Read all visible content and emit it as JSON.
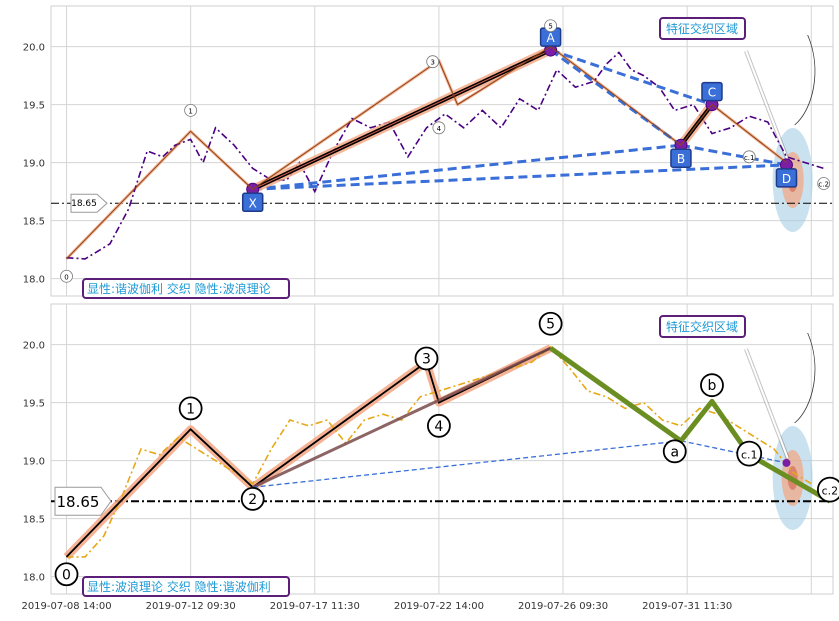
{
  "chart_data": [
    {
      "type": "line",
      "panel": "top",
      "ylim": [
        17.85,
        20.35
      ],
      "y_ticks": [
        18.0,
        18.5,
        19.0,
        19.5,
        20.0
      ],
      "y_tick_labels": [
        "18.0",
        "18.5",
        "19.0",
        "19.5",
        "20.0"
      ],
      "grid": true,
      "price_series": [
        {
          "x": 0.0,
          "y": 18.18
        },
        {
          "x": 0.3,
          "y": 18.17
        },
        {
          "x": 0.7,
          "y": 18.3
        },
        {
          "x": 1.0,
          "y": 18.6
        },
        {
          "x": 1.3,
          "y": 19.1
        },
        {
          "x": 1.55,
          "y": 19.05
        },
        {
          "x": 1.75,
          "y": 19.15
        },
        {
          "x": 2.0,
          "y": 19.2
        },
        {
          "x": 2.2,
          "y": 19.0
        },
        {
          "x": 2.4,
          "y": 19.3
        },
        {
          "x": 2.7,
          "y": 19.15
        },
        {
          "x": 3.0,
          "y": 18.95
        },
        {
          "x": 3.3,
          "y": 18.85
        },
        {
          "x": 3.55,
          "y": 18.85
        },
        {
          "x": 3.75,
          "y": 19.0
        },
        {
          "x": 4.0,
          "y": 18.75
        },
        {
          "x": 4.3,
          "y": 19.1
        },
        {
          "x": 4.6,
          "y": 19.38
        },
        {
          "x": 4.9,
          "y": 19.3
        },
        {
          "x": 5.2,
          "y": 19.35
        },
        {
          "x": 5.5,
          "y": 19.05
        },
        {
          "x": 5.8,
          "y": 19.3
        },
        {
          "x": 6.1,
          "y": 19.42
        },
        {
          "x": 6.4,
          "y": 19.3
        },
        {
          "x": 6.7,
          "y": 19.45
        },
        {
          "x": 7.0,
          "y": 19.3
        },
        {
          "x": 7.3,
          "y": 19.55
        },
        {
          "x": 7.6,
          "y": 19.45
        },
        {
          "x": 7.9,
          "y": 19.8
        },
        {
          "x": 8.2,
          "y": 19.65
        },
        {
          "x": 8.5,
          "y": 19.7
        },
        {
          "x": 8.7,
          "y": 19.85
        },
        {
          "x": 8.9,
          "y": 19.95
        },
        {
          "x": 9.1,
          "y": 19.8
        },
        {
          "x": 9.3,
          "y": 19.75
        },
        {
          "x": 9.55,
          "y": 19.65
        },
        {
          "x": 9.8,
          "y": 19.45
        },
        {
          "x": 10.1,
          "y": 19.5
        },
        {
          "x": 10.4,
          "y": 19.25
        },
        {
          "x": 10.7,
          "y": 19.3
        },
        {
          "x": 11.0,
          "y": 19.4
        },
        {
          "x": 11.3,
          "y": 19.35
        },
        {
          "x": 11.6,
          "y": 19.05
        },
        {
          "x": 11.9,
          "y": 19.0
        },
        {
          "x": 12.2,
          "y": 18.95
        }
      ],
      "wave_lines": [
        {
          "x": 0.0,
          "y": 18.17
        },
        {
          "x": 2.0,
          "y": 19.27
        },
        {
          "x": 3.0,
          "y": 18.77
        },
        {
          "x": 6.0,
          "y": 19.88
        },
        {
          "x": 6.3,
          "y": 19.5
        },
        {
          "x": 7.8,
          "y": 20.0
        },
        {
          "x": 9.9,
          "y": 19.15
        },
        {
          "x": 10.4,
          "y": 19.5
        },
        {
          "x": 11.6,
          "y": 19.0
        }
      ],
      "harmonic_points": [
        {
          "label": "X",
          "x": 3.0,
          "y": 18.77
        },
        {
          "label": "A",
          "x": 7.8,
          "y": 19.97
        },
        {
          "label": "B",
          "x": 9.9,
          "y": 19.15
        },
        {
          "label": "C",
          "x": 10.4,
          "y": 19.5
        },
        {
          "label": "D",
          "x": 11.6,
          "y": 18.98
        }
      ],
      "wave_labels": [
        {
          "label": "0",
          "x": 0.0,
          "y": 18.02
        },
        {
          "label": "1",
          "x": 2.0,
          "y": 19.45
        },
        {
          "label": "3",
          "x": 5.9,
          "y": 19.87
        },
        {
          "label": "4",
          "x": 6.0,
          "y": 19.3
        },
        {
          "label": "5",
          "x": 7.8,
          "y": 20.18
        },
        {
          "label": "c.1",
          "x": 11.0,
          "y": 19.05
        },
        {
          "label": "c.2",
          "x": 12.2,
          "y": 18.82
        }
      ],
      "hline": {
        "value": 18.65,
        "label": "18.65"
      },
      "zone_label": "特征交织区域",
      "caption": "显性:谐波伽利 交织 隐性:波浪理论"
    },
    {
      "type": "line",
      "panel": "bottom",
      "ylim": [
        17.85,
        20.35
      ],
      "y_ticks": [
        18.0,
        18.5,
        19.0,
        19.5,
        20.0
      ],
      "y_tick_labels": [
        "18.0",
        "18.5",
        "19.0",
        "19.5",
        "20.0"
      ],
      "x_ticks": [
        0,
        2,
        4,
        6,
        8,
        10
      ],
      "x_tick_labels": [
        "2019-07-08 14:00",
        "2019-07-12 09:30",
        "2019-07-17 11:30",
        "2019-07-22 14:00",
        "2019-07-26 09:30",
        "2019-07-31 11:30"
      ],
      "grid": true,
      "price_series": [
        {
          "x": 0.0,
          "y": 18.17
        },
        {
          "x": 0.3,
          "y": 18.17
        },
        {
          "x": 0.6,
          "y": 18.35
        },
        {
          "x": 0.9,
          "y": 18.7
        },
        {
          "x": 1.2,
          "y": 19.1
        },
        {
          "x": 1.5,
          "y": 19.05
        },
        {
          "x": 1.8,
          "y": 19.2
        },
        {
          "x": 2.1,
          "y": 19.1
        },
        {
          "x": 2.4,
          "y": 19.0
        },
        {
          "x": 2.7,
          "y": 18.9
        },
        {
          "x": 3.0,
          "y": 18.8
        },
        {
          "x": 3.3,
          "y": 19.1
        },
        {
          "x": 3.6,
          "y": 19.35
        },
        {
          "x": 3.9,
          "y": 19.3
        },
        {
          "x": 4.2,
          "y": 19.35
        },
        {
          "x": 4.5,
          "y": 19.15
        },
        {
          "x": 4.8,
          "y": 19.35
        },
        {
          "x": 5.1,
          "y": 19.4
        },
        {
          "x": 5.4,
          "y": 19.35
        },
        {
          "x": 5.7,
          "y": 19.55
        },
        {
          "x": 6.0,
          "y": 19.6
        },
        {
          "x": 6.3,
          "y": 19.65
        },
        {
          "x": 6.6,
          "y": 19.7
        },
        {
          "x": 6.9,
          "y": 19.75
        },
        {
          "x": 7.2,
          "y": 19.8
        },
        {
          "x": 7.5,
          "y": 19.85
        },
        {
          "x": 7.8,
          "y": 19.98
        },
        {
          "x": 8.1,
          "y": 19.8
        },
        {
          "x": 8.4,
          "y": 19.6
        },
        {
          "x": 8.7,
          "y": 19.55
        },
        {
          "x": 9.0,
          "y": 19.45
        },
        {
          "x": 9.3,
          "y": 19.5
        },
        {
          "x": 9.6,
          "y": 19.35
        },
        {
          "x": 9.9,
          "y": 19.3
        },
        {
          "x": 10.2,
          "y": 19.45
        },
        {
          "x": 10.5,
          "y": 19.4
        },
        {
          "x": 10.8,
          "y": 19.3
        },
        {
          "x": 11.1,
          "y": 19.2
        },
        {
          "x": 11.4,
          "y": 19.1
        },
        {
          "x": 11.7,
          "y": 18.9
        },
        {
          "x": 12.0,
          "y": 18.8
        }
      ],
      "wave_lines": [
        {
          "x": 0.0,
          "y": 18.17
        },
        {
          "x": 2.0,
          "y": 19.27
        },
        {
          "x": 3.0,
          "y": 18.77
        },
        {
          "x": 5.8,
          "y": 19.85
        },
        {
          "x": 6.0,
          "y": 19.5
        },
        {
          "x": 7.8,
          "y": 19.97
        }
      ],
      "correction_lines": [
        {
          "x": 7.8,
          "y": 19.97
        },
        {
          "x": 9.9,
          "y": 19.17
        },
        {
          "x": 10.4,
          "y": 19.51
        },
        {
          "x": 11.0,
          "y": 19.05
        },
        {
          "x": 12.3,
          "y": 18.65
        }
      ],
      "wave_labels": [
        {
          "label": "0",
          "x": 0.0,
          "y": 18.02
        },
        {
          "label": "1",
          "x": 2.0,
          "y": 19.45
        },
        {
          "label": "2",
          "x": 3.0,
          "y": 18.67
        },
        {
          "label": "3",
          "x": 5.8,
          "y": 19.88
        },
        {
          "label": "4",
          "x": 6.0,
          "y": 19.3
        },
        {
          "label": "5",
          "x": 7.8,
          "y": 20.18
        },
        {
          "label": "a",
          "x": 9.8,
          "y": 19.08
        },
        {
          "label": "b",
          "x": 10.4,
          "y": 19.65
        },
        {
          "label": "c.1",
          "x": 11.0,
          "y": 19.06
        },
        {
          "label": "c.2",
          "x": 12.3,
          "y": 18.75
        }
      ],
      "hline": {
        "value": 18.65,
        "label": "18.65"
      },
      "zone_label": "特征交织区域",
      "caption": "显性:波浪理论 交织 隐性:谐波伽利"
    }
  ],
  "colors": {
    "price_top": "#4b0082",
    "price_bottom": "#e6a817",
    "harmonic_link": "#3a6fd8",
    "harmonic_box": "#3a6fd8",
    "correction": "#6b8e23",
    "wave_thick": "#f4a582",
    "zone_text": "#1f9ad6",
    "caption_border": "#5b1f7a",
    "hline": "#000000"
  }
}
